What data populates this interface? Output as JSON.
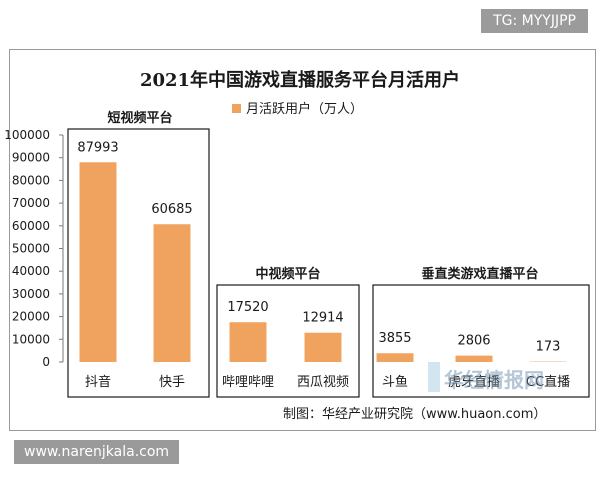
{
  "watermarks": {
    "top_right": "TG: MYYJJPP",
    "bottom_left": "www.narenjkala.com"
  },
  "colors": {
    "bar": "#f0a35e",
    "frame": "#9a9a9a",
    "text": "#1a1a1a"
  },
  "chart_data": {
    "type": "bar",
    "title": "2021年中国游戏直播服务平台月活用户",
    "legend": {
      "label": "月活跃用户（万人）",
      "placement": "top"
    },
    "categories": [
      "抖音",
      "快手",
      "哔哩哔哩",
      "西瓜视频",
      "斗鱼",
      "虎牙直播",
      "CC直播"
    ],
    "values": [
      87993,
      60685,
      17520,
      12914,
      3855,
      2806,
      173
    ],
    "groups": [
      {
        "label": "短视频平台",
        "categories": [
          "抖音",
          "快手"
        ]
      },
      {
        "label": "中视频平台",
        "categories": [
          "哔哩哔哩",
          "西瓜视频"
        ]
      },
      {
        "label": "垂直类游戏直播平台",
        "categories": [
          "斗鱼",
          "虎牙直播",
          "CC直播"
        ]
      }
    ],
    "ylim": [
      0,
      100000
    ],
    "yticks": [
      "100000",
      "90000",
      "80000",
      "70000",
      "60000",
      "50000",
      "40000",
      "30000",
      "20000",
      "10000",
      "0"
    ],
    "grid": false,
    "source": "制图：华经产业研究院（www.huaon.com）",
    "logo_text": "华经情报网"
  }
}
